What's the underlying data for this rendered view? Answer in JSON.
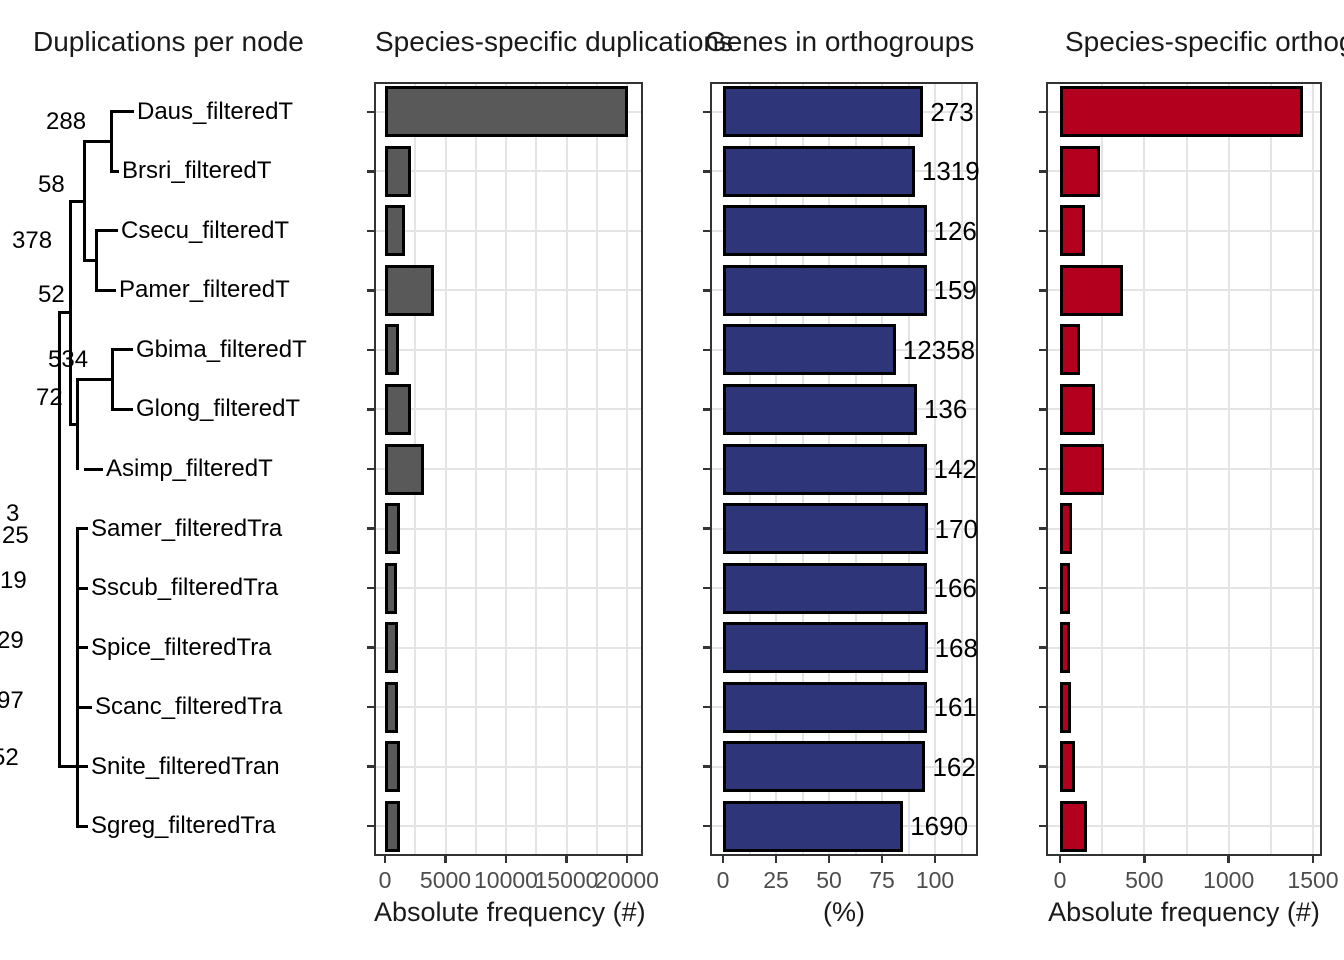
{
  "figure": {
    "titles": {
      "tree": "Duplications per node",
      "gray": "Species-specific duplications",
      "blue": "Genes in orthogroups",
      "red": "Species-specific orthogroups"
    },
    "axis_titles": {
      "gray": "Absolute frequency (#)",
      "blue": "(%)",
      "red": "Absolute frequency (#)"
    }
  },
  "tree": {
    "species": [
      "Daus_filteredT",
      "Brsri_filteredT",
      "Csecu_filteredT",
      "Pamer_filteredT",
      "Gbima_filteredT",
      "Glong_filteredT",
      "Asimp_filteredT",
      "Samer_filteredTra",
      "Sscub_filteredTra",
      "Spice_filteredTra",
      "Scanc_filteredTra",
      "Snite_filteredTran",
      "Sgreg_filteredTra"
    ],
    "node_labels": [
      "288",
      "58",
      "378",
      "52",
      "534",
      "72",
      "3",
      "25",
      "19",
      "29",
      "97",
      "52"
    ]
  },
  "colors": {
    "gray_bar": "#595959",
    "blue_bar": "#2E3579",
    "red_bar": "#B2001E",
    "bar_stroke": "#000000",
    "grid": "#E4E4E4",
    "panel_border": "#333333",
    "tick_label": "#4d4d4d"
  },
  "chart_data": [
    {
      "type": "bar",
      "orientation": "horizontal",
      "title": "Species-specific duplications",
      "categories": [
        "Daus_filteredT",
        "Brsri_filteredT",
        "Csecu_filteredT",
        "Pamer_filteredT",
        "Gbima_filteredT",
        "Glong_filteredT",
        "Asimp_filteredT",
        "Samer_filteredTra",
        "Sscub_filteredTra",
        "Spice_filteredTra",
        "Scanc_filteredTra",
        "Snite_filteredTran",
        "Sgreg_filteredTra"
      ],
      "values": [
        20050,
        2150,
        1650,
        4050,
        1150,
        2150,
        3200,
        1200,
        1000,
        1100,
        1100,
        1250,
        1250
      ],
      "xlabel": "Absolute frequency (#)",
      "xticks": [
        0,
        5000,
        10000,
        15000,
        20000
      ],
      "xlim": [
        0,
        21300
      ],
      "grid": true,
      "bar_color": "#595959"
    },
    {
      "type": "bar",
      "orientation": "horizontal",
      "title": "Genes in orthogroups",
      "categories": [
        "Daus_filteredT",
        "Brsri_filteredT",
        "Csecu_filteredT",
        "Pamer_filteredT",
        "Gbima_filteredT",
        "Glong_filteredT",
        "Asimp_filteredT",
        "Samer_filteredTra",
        "Sscub_filteredTra",
        "Spice_filteredTra",
        "Scanc_filteredTra",
        "Snite_filteredTran",
        "Sgreg_filteredTra"
      ],
      "values": [
        94.5,
        90.5,
        96,
        96,
        81.5,
        91.5,
        96,
        96.5,
        96,
        96.5,
        96,
        95.5,
        85
      ],
      "bar_labels": [
        "273",
        "1319",
        "126",
        "159",
        "12358",
        "136",
        "142",
        "170",
        "166",
        "168",
        "161",
        "162",
        "1690"
      ],
      "xlabel": "(%)",
      "xticks": [
        0,
        25,
        50,
        75,
        100
      ],
      "xlim": [
        0,
        120
      ],
      "grid": true,
      "bar_color": "#2E3579"
    },
    {
      "type": "bar",
      "orientation": "horizontal",
      "title": "Species-specific orthogroups",
      "categories": [
        "Daus_filteredT",
        "Brsri_filteredT",
        "Csecu_filteredT",
        "Pamer_filteredT",
        "Gbima_filteredT",
        "Glong_filteredT",
        "Asimp_filteredT",
        "Samer_filteredTra",
        "Sscub_filteredTra",
        "Spice_filteredTra",
        "Scanc_filteredTra",
        "Snite_filteredTran",
        "Sgreg_filteredTra"
      ],
      "values": [
        1440,
        240,
        150,
        375,
        120,
        210,
        260,
        70,
        60,
        60,
        65,
        90,
        160
      ],
      "xlabel": "Absolute frequency (#)",
      "xticks": [
        0,
        500,
        1000,
        1500
      ],
      "xlim": [
        0,
        1550
      ],
      "grid": true,
      "bar_color": "#B2001E"
    }
  ]
}
